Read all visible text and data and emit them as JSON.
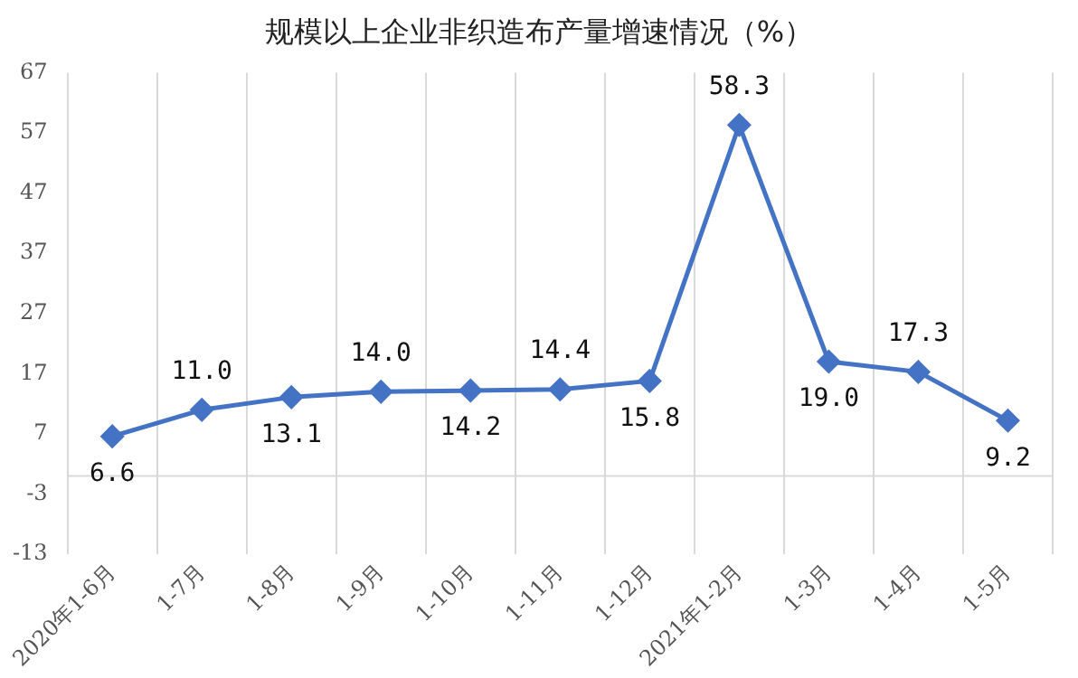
{
  "chart_data": {
    "type": "line",
    "title": "规模以上企业非织造布产量增速情况（%）",
    "categories": [
      "2020年1-6月",
      "1-7月",
      "1-8月",
      "1-9月",
      "1-10月",
      "1-11月",
      "1-12月",
      "2021年1-2月",
      "1-3月",
      "1-4月",
      "1-5月"
    ],
    "series": [
      {
        "color": "#4472c4",
        "values": [
          6.6,
          11.0,
          13.1,
          14.0,
          14.2,
          14.4,
          15.8,
          58.3,
          19.0,
          17.3,
          9.2
        ],
        "value_labels": [
          "6.6",
          "11.0",
          "13.1",
          "14.0",
          "14.2",
          "14.4",
          "15.8",
          "58.3",
          "19.0",
          "17.3",
          "9.2"
        ]
      }
    ],
    "ylim": [
      -13,
      67
    ],
    "yticks": [
      -13,
      -3,
      7,
      17,
      27,
      37,
      47,
      57,
      67
    ],
    "grid": "x",
    "legend": false,
    "marker": "diamond",
    "line_style": "solid",
    "ref_lines": [
      {
        "axis": "y",
        "value": 0,
        "color": "#d9d9d9"
      }
    ]
  }
}
